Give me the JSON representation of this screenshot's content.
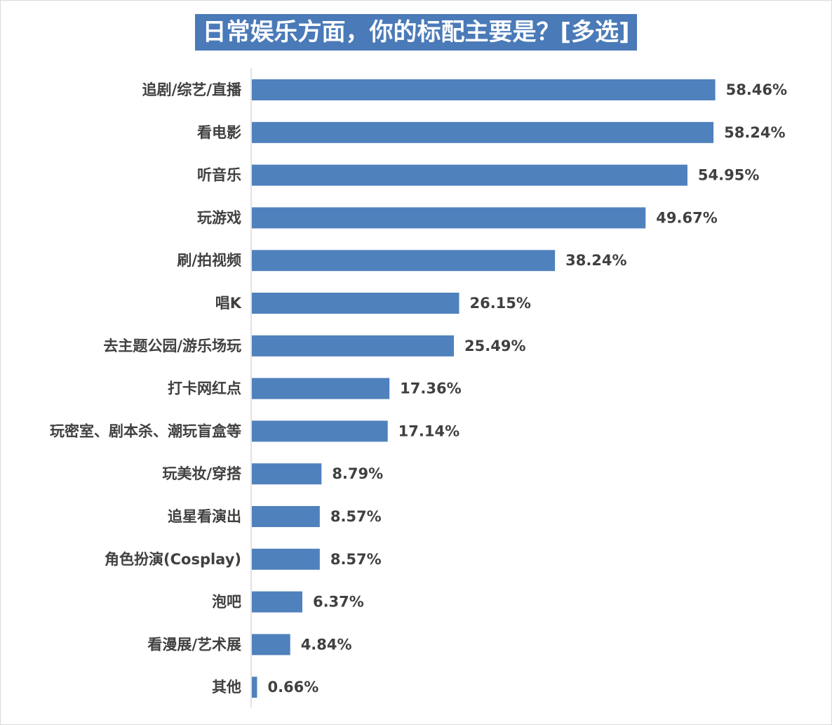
{
  "chart_data": {
    "type": "bar",
    "orientation": "horizontal",
    "title": "日常娱乐方面，你的标配主要是？[多选]",
    "categories": [
      "追剧/综艺/直播",
      "看电影",
      "听音乐",
      "玩游戏",
      "刷/拍视频",
      "唱K",
      "去主题公园/游乐场玩",
      "打卡网红点",
      "玩密室、剧本杀、潮玩盲盒等",
      "玩美妆/穿搭",
      "追星看演出",
      "角色扮演(Cosplay)",
      "泡吧",
      "看漫展/艺术展",
      "其他"
    ],
    "values": [
      58.46,
      58.24,
      54.95,
      49.67,
      38.24,
      26.15,
      25.49,
      17.36,
      17.14,
      8.79,
      8.57,
      8.57,
      6.37,
      4.84,
      0.66
    ],
    "value_labels": [
      "58.46%",
      "58.24%",
      "54.95%",
      "49.67%",
      "38.24%",
      "26.15%",
      "25.49%",
      "17.36%",
      "17.14%",
      "8.79%",
      "8.57%",
      "8.57%",
      "6.37%",
      "4.84%",
      "0.66%"
    ],
    "xlim": [
      0,
      100
    ],
    "grid": false,
    "legend": "none",
    "bar_color": "#4f81bd",
    "title_bg_color": "#4a7ab8"
  }
}
